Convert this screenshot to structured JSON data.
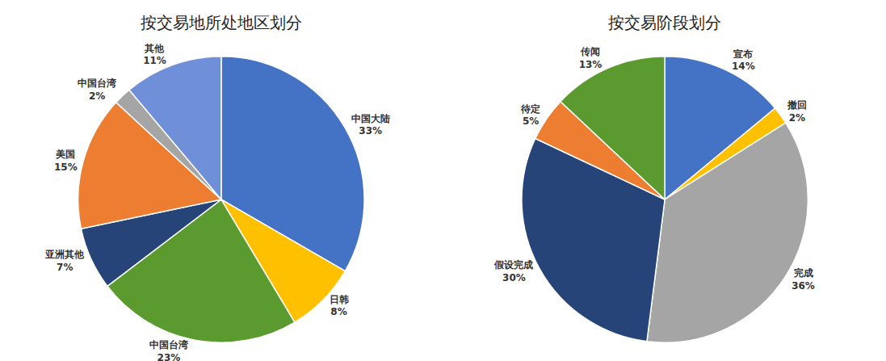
{
  "chart_data": [
    {
      "type": "pie",
      "title": "按交易地所处地区划分",
      "categories": [
        "中国大陆",
        "日韩",
        "中国台湾",
        "亚洲其他",
        "美国",
        "中国台湾",
        "其他"
      ],
      "values": [
        33,
        8,
        23,
        7,
        15,
        2,
        11
      ],
      "value_labels": [
        "33%",
        "8%",
        "23%",
        "7%",
        "15%",
        "2%",
        "11%"
      ],
      "colors": [
        "#4472c4",
        "#ffc000",
        "#5b9a2f",
        "#264478",
        "#ed7d31",
        "#a5a5a5",
        "#6f8fd8"
      ],
      "data_labels": true
    },
    {
      "type": "pie",
      "title": "按交易阶段划分",
      "categories": [
        "宣布",
        "撤回",
        "完成",
        "假设完成",
        "待定",
        "传闻"
      ],
      "values": [
        14,
        2,
        36,
        30,
        5,
        13
      ],
      "value_labels": [
        "14%",
        "2%",
        "36%",
        "30%",
        "5%",
        "13%"
      ],
      "colors": [
        "#4472c4",
        "#ffc000",
        "#a5a5a5",
        "#264478",
        "#ed7d31",
        "#5b9a2f"
      ],
      "data_labels": true
    }
  ]
}
